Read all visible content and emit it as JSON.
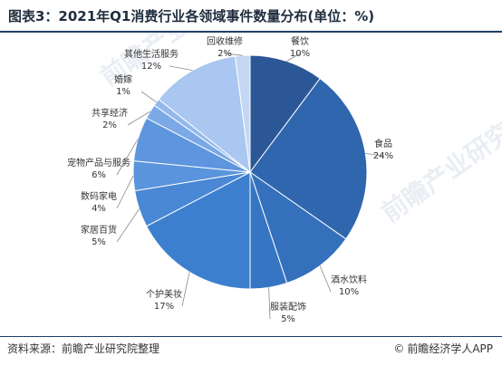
{
  "title": "图表3：2021年Q1消费行业各领域事件数量分布(单位：%)",
  "source": "资料来源：前瞻产业研究院整理",
  "brand": "前瞻经济学人APP",
  "watermark": "前瞻产业研究院",
  "colors": {
    "rule": "#1f3d66",
    "slices": [
      "#2b5797",
      "#2f66ae",
      "#3470bc",
      "#3675c4",
      "#3c7fce",
      "#4a87d4",
      "#5a94dc",
      "#5d95de",
      "#7ba9e6",
      "#92b8ec",
      "#a9c7f0",
      "#c3d7f4"
    ]
  },
  "chart_data": {
    "type": "pie",
    "title": "图表3：2021年Q1消费行业各领域事件数量分布(单位：%)",
    "unit": "%",
    "start_angle": 0,
    "direction": "clockwise",
    "slices": [
      {
        "label": "餐饮",
        "value": 10,
        "text": "10%"
      },
      {
        "label": "食品",
        "value": 24,
        "text": "24%"
      },
      {
        "label": "酒水饮料",
        "value": 10,
        "text": "10%"
      },
      {
        "label": "服装配饰",
        "value": 5,
        "text": "5%"
      },
      {
        "label": "个护美妆",
        "value": 17,
        "text": "17%"
      },
      {
        "label": "家居百货",
        "value": 5,
        "text": "5%"
      },
      {
        "label": "数码家电",
        "value": 4,
        "text": "4%"
      },
      {
        "label": "宠物产品与服务",
        "value": 6,
        "text": "6%"
      },
      {
        "label": "共享经济",
        "value": 2,
        "text": "2%"
      },
      {
        "label": "婚嫁",
        "value": 1,
        "text": "1%"
      },
      {
        "label": "其他生活服务",
        "value": 12,
        "text": "12%"
      },
      {
        "label": "回收维修",
        "value": 2,
        "text": "2%"
      }
    ]
  }
}
